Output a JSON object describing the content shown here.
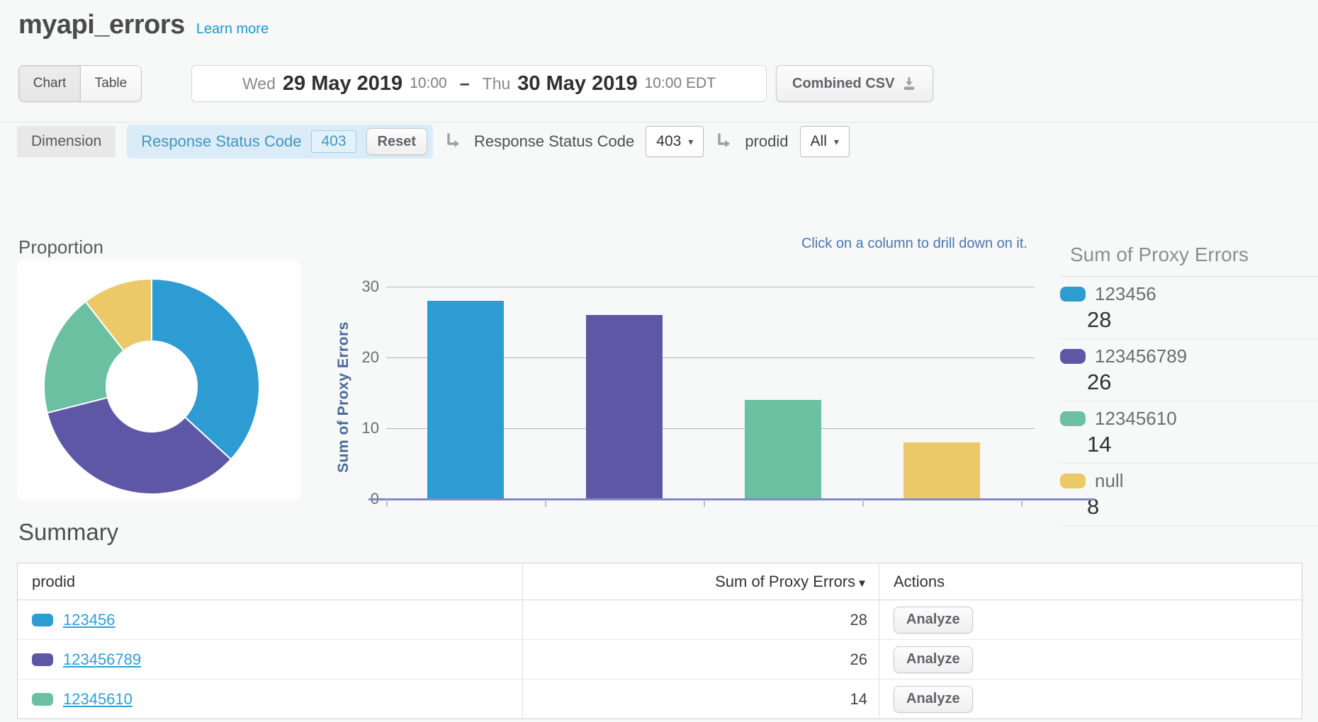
{
  "header": {
    "title": "myapi_errors",
    "learn_more": "Learn more"
  },
  "toolbar": {
    "view_toggle": {
      "chart": "Chart",
      "table": "Table",
      "selected": "Chart"
    },
    "date_range": {
      "start_day": "Wed",
      "start_date": "29 May 2019",
      "start_time": "10:00",
      "separator": "–",
      "end_day": "Thu",
      "end_date": "30 May 2019",
      "end_time": "10:00 EDT"
    },
    "csv_button": "Combined CSV"
  },
  "filter_bar": {
    "dimension_label": "Dimension",
    "active_filter": {
      "name": "Response Status Code",
      "value": "403"
    },
    "reset_button": "Reset",
    "drilldowns": [
      {
        "label": "Response Status Code",
        "value": "403"
      },
      {
        "label": "prodid",
        "value": "All"
      }
    ]
  },
  "icons": {
    "caret_down": "▾",
    "sort_desc": "▼"
  },
  "charts": {
    "proportion_title": "Proportion",
    "drill_hint": "Click on a column to drill down on it."
  },
  "chart_data": [
    {
      "type": "pie",
      "subtype": "donut",
      "title": "Proportion",
      "labels": [
        "123456",
        "123456789",
        "12345610",
        "null"
      ],
      "values": [
        28,
        26,
        14,
        8
      ],
      "colors": [
        "#2C9CD3",
        "#5D57A6",
        "#6BC0A1",
        "#EBC868"
      ]
    },
    {
      "type": "bar",
      "categories": [
        "123456",
        "123456789",
        "12345610",
        "null"
      ],
      "values": [
        28,
        26,
        14,
        8
      ],
      "colors": [
        "#2C9CD3",
        "#5D57A6",
        "#6BC0A1",
        "#EBC868"
      ],
      "title": "",
      "xlabel": "",
      "ylabel": "Sum of Proxy Errors",
      "ylim": [
        0,
        30
      ],
      "yticks": [
        0,
        10,
        20,
        30
      ],
      "grid": true,
      "legend_position": "right"
    }
  ],
  "legend": {
    "title": "Sum of Proxy Errors",
    "items": [
      {
        "label": "123456",
        "value": "28",
        "color": "#2C9CD3"
      },
      {
        "label": "123456789",
        "value": "26",
        "color": "#5D57A6"
      },
      {
        "label": "12345610",
        "value": "14",
        "color": "#6BC0A1"
      },
      {
        "label": "null",
        "value": "8",
        "color": "#EBC868"
      }
    ]
  },
  "summary": {
    "title": "Summary",
    "columns": [
      "prodid",
      "Sum of Proxy Errors",
      "Actions"
    ],
    "analyze_label": "Analyze",
    "rows": [
      {
        "prodid": "123456",
        "value": "28",
        "color": "#2C9CD3"
      },
      {
        "prodid": "123456789",
        "value": "26",
        "color": "#5D57A6"
      },
      {
        "prodid": "12345610",
        "value": "14",
        "color": "#6BC0A1"
      }
    ]
  }
}
